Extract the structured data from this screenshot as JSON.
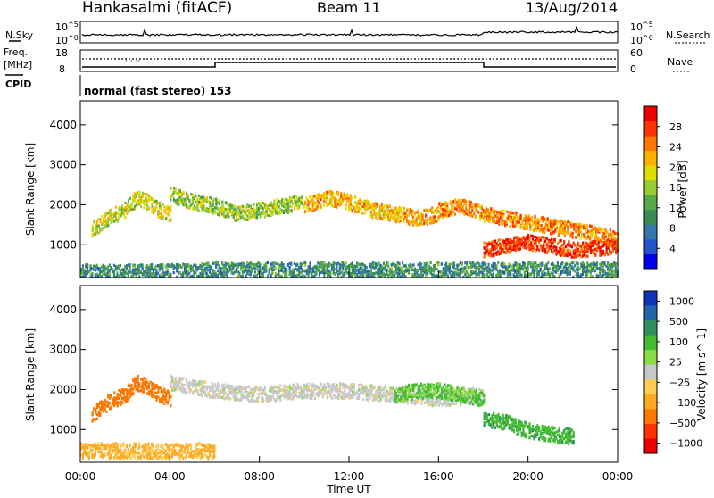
{
  "header": {
    "station": "Hankasalmi (fitACF)",
    "beam": "Beam 11",
    "date": "13/Aug/2014"
  },
  "status_panel": {
    "nsky_label": "N.Sky",
    "nsearch_label": "N.Search",
    "freq_label_1": "Freq.",
    "freq_label_2": "[MHz]",
    "nave_label": "Nave",
    "cpid_label": "CPID",
    "cpid_value": "normal (fast stereo) 153",
    "noise_axis": {
      "top_label": "10^5",
      "bottom_label": "10^0",
      "scale": "log"
    },
    "freq_axis": {
      "ticks": [
        "18",
        "8"
      ],
      "range": [
        8,
        18
      ]
    },
    "nave_axis": {
      "ticks": [
        "60",
        "0"
      ],
      "range": [
        0,
        60
      ]
    }
  },
  "colors": {
    "power": [
      "#0000ee",
      "#2255cc",
      "#3377aa",
      "#3a8a55",
      "#55aa44",
      "#99cc33",
      "#dddd00",
      "#ffb000",
      "#ff7700",
      "#ff3300",
      "#ee0000"
    ],
    "velocity": [
      "#1133bb",
      "#2266aa",
      "#2f8f5f",
      "#44bb33",
      "#88dd44",
      "#c8c8c8",
      "#ffcc55",
      "#ffaa22",
      "#ff7700",
      "#ff3300",
      "#ee0000"
    ],
    "ground_scatter": "#bcbcbc"
  },
  "chart_data": [
    {
      "type": "heatmap",
      "name": "power",
      "ylabel": "Slant Range [km]",
      "ylim": [
        180,
        4600
      ],
      "y_ticks": [
        1000,
        2000,
        3000,
        4000
      ],
      "xlim_hours": [
        0,
        24
      ],
      "colorbar": {
        "label": "Power [dB]",
        "ticks": [
          "4",
          "8",
          "12",
          "16",
          "20",
          "24",
          "28"
        ],
        "range": [
          0,
          32
        ]
      },
      "echo_bands": [
        {
          "t": [
            0.5,
            1.2,
            2.0,
            2.5,
            3.0,
            3.5,
            4.0
          ],
          "range_km": [
            1400,
            1700,
            1900,
            2200,
            2100,
            1900,
            1800
          ],
          "value": 18
        },
        {
          "t": [
            4.0,
            5.0,
            6.0,
            7.0,
            8.0,
            9.0,
            10.0
          ],
          "range_km": [
            2300,
            2100,
            2000,
            1800,
            1900,
            2000,
            2100
          ],
          "value": 16
        },
        {
          "t": [
            10.0,
            11.0,
            12.0,
            13.0,
            14.0,
            15.0,
            16.0
          ],
          "range_km": [
            2000,
            2200,
            2100,
            1900,
            1800,
            1700,
            1800
          ],
          "value": 22
        },
        {
          "t": [
            16.0,
            17.0,
            18.0,
            19.0,
            20.0,
            21.0,
            22.0,
            23.0,
            24.0
          ],
          "range_km": [
            1900,
            2000,
            1800,
            1700,
            1600,
            1500,
            1400,
            1300,
            1200
          ],
          "value": 24
        },
        {
          "t": [
            18.0,
            19.0,
            20.0,
            21.0,
            22.0,
            23.0,
            24.0
          ],
          "range_km": [
            900,
            1000,
            1100,
            1000,
            900,
            950,
            1000
          ],
          "value": 28
        },
        {
          "t": [
            0.0,
            2.0,
            4.0,
            6.0,
            8.0,
            10.0,
            12.0,
            14.0,
            16.0,
            18.0,
            20.0,
            22.0,
            24.0
          ],
          "range_km": [
            350,
            350,
            350,
            400,
            400,
            400,
            400,
            400,
            400,
            400,
            400,
            400,
            400
          ],
          "value": 10
        }
      ]
    },
    {
      "type": "heatmap",
      "name": "velocity",
      "ylabel": "Slant Range [km]",
      "xlabel": "Time UT",
      "ylim": [
        180,
        4600
      ],
      "y_ticks": [
        1000,
        2000,
        3000,
        4000
      ],
      "xlim_hours": [
        0,
        24
      ],
      "x_ticks": [
        "00:00",
        "04:00",
        "08:00",
        "12:00",
        "16:00",
        "20:00",
        "00:00"
      ],
      "colorbar": {
        "label": "Velocity [m s^-1]",
        "ticks": [
          "1000",
          "500",
          "100",
          "25",
          "−25",
          "−100",
          "−500",
          "−1000"
        ]
      },
      "echo_bands": [
        {
          "t": [
            0.5,
            1.2,
            2.0,
            2.5,
            3.0,
            3.5,
            4.0
          ],
          "range_km": [
            1400,
            1700,
            1900,
            2200,
            2100,
            1900,
            1800
          ],
          "value": -300
        },
        {
          "t": [
            4.0,
            6.0,
            8.0,
            10.0,
            12.0,
            14.0,
            16.0,
            18.0
          ],
          "range_km": [
            2200,
            2000,
            1900,
            2000,
            2000,
            1900,
            1800,
            1900
          ],
          "value": 0
        },
        {
          "t": [
            14.0,
            15.0,
            16.0,
            17.0,
            18.0
          ],
          "range_km": [
            1900,
            2000,
            2000,
            1900,
            1800
          ],
          "value": 60
        },
        {
          "t": [
            18.0,
            19.0,
            20.0,
            21.0,
            22.0
          ],
          "range_km": [
            1300,
            1200,
            1000,
            900,
            850
          ],
          "value": 80
        },
        {
          "t": [
            0.0,
            2.0,
            4.0,
            6.0
          ],
          "range_km": [
            500,
            500,
            500,
            500
          ],
          "value": -60
        }
      ]
    }
  ]
}
